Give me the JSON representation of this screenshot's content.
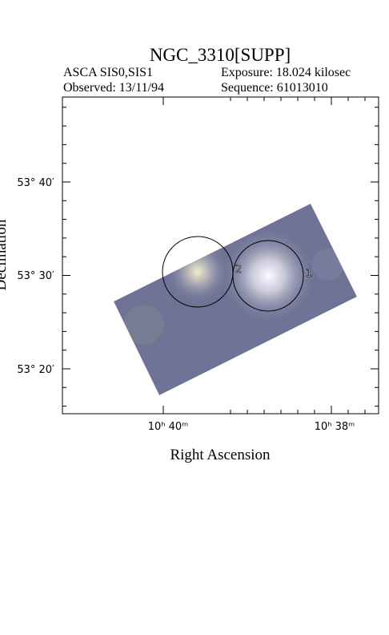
{
  "header": {
    "title": "NGC_3310[SUPP]",
    "instrument": "ASCA SIS0,SIS1",
    "exposure": "Exposure: 18.024 kilosec",
    "observed": "Observed: 13/11/94",
    "sequence": "Sequence: 61013010"
  },
  "axes": {
    "y_label": "Declination",
    "x_label": "Right Ascension",
    "y_ticks": [
      "53° 40′",
      "53° 30′",
      "53° 20′"
    ],
    "x_ticks": [
      "10ʰ 40ᵐ",
      "10ʰ 38ᵐ"
    ]
  },
  "regions": [
    {
      "label": "1"
    },
    {
      "label": "2"
    }
  ]
}
